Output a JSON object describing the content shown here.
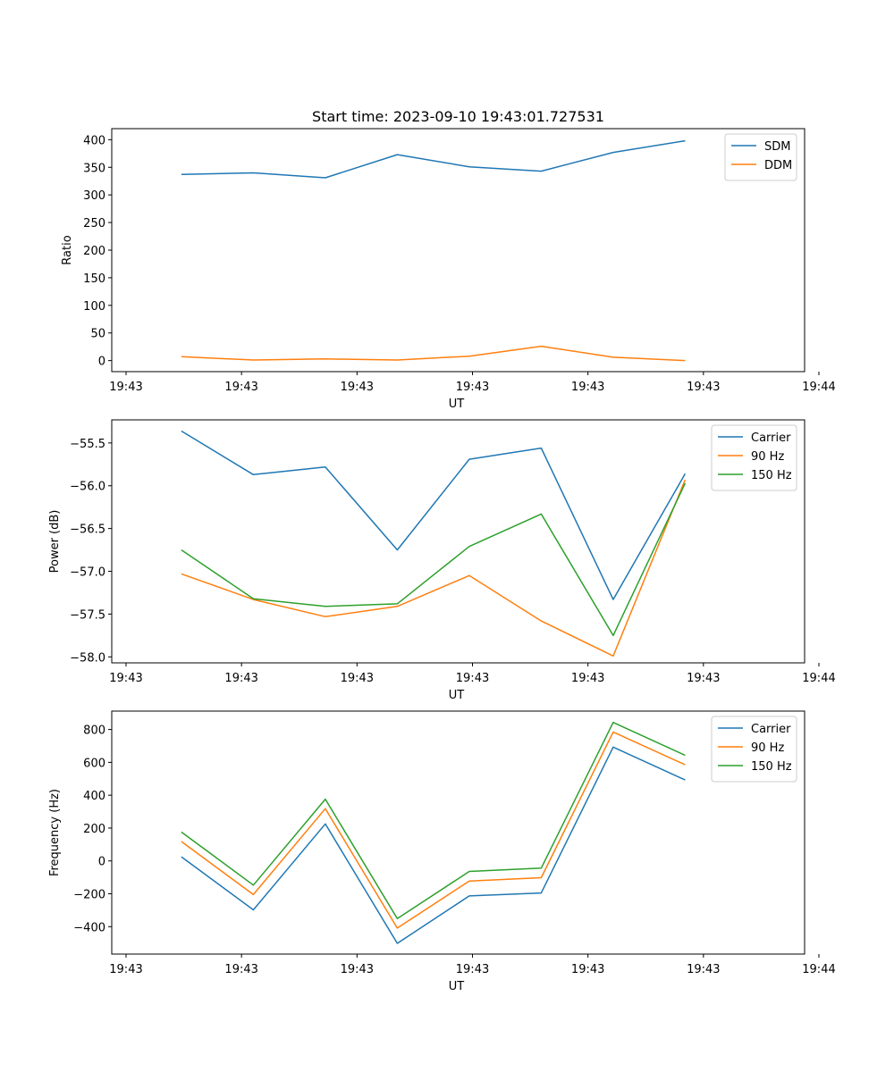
{
  "colors": {
    "blue": "#1f77b4",
    "orange": "#ff7f0e",
    "green": "#2ca02c"
  },
  "chart_data": [
    {
      "type": "line",
      "title": "Start time: 2023-09-10 19:43:01.727531",
      "xlabel": "UT",
      "ylabel": "Ratio",
      "xlim": [
        0,
        6
      ],
      "ylim": [
        -20,
        420
      ],
      "yticks": [
        0,
        50,
        100,
        150,
        200,
        250,
        300,
        350,
        400
      ],
      "xticks": [
        0,
        1,
        2,
        3,
        4,
        5,
        6
      ],
      "xtick_labels": [
        "19:43",
        "19:43",
        "19:43",
        "19:43",
        "19:43",
        "19:43",
        "19:44"
      ],
      "x": [
        0.5,
        1.15,
        1.8,
        2.45,
        3.1,
        3.75,
        4.4,
        5.05
      ],
      "legend_position": "upper right",
      "series": [
        {
          "name": "SDM",
          "color": "#1f77b4",
          "values": [
            337,
            340,
            331,
            373,
            351,
            343,
            377,
            398
          ]
        },
        {
          "name": "DDM",
          "color": "#ff7f0e",
          "values": [
            7,
            1,
            3,
            1,
            8,
            26,
            6,
            0
          ]
        }
      ]
    },
    {
      "type": "line",
      "title": "",
      "xlabel": "UT",
      "ylabel": "Power (dB)",
      "xlim": [
        0,
        6
      ],
      "ylim": [
        -58.07,
        -55.23
      ],
      "yticks": [
        -58.0,
        -57.5,
        -57.0,
        -56.5,
        -56.0,
        -55.5
      ],
      "ytick_labels": [
        "−58.0",
        "−57.5",
        "−57.0",
        "−56.5",
        "−56.0",
        "−55.5"
      ],
      "xticks": [
        0,
        1,
        2,
        3,
        4,
        5,
        6
      ],
      "xtick_labels": [
        "19:43",
        "19:43",
        "19:43",
        "19:43",
        "19:43",
        "19:43",
        "19:44"
      ],
      "x": [
        0.5,
        1.15,
        1.8,
        2.45,
        3.1,
        3.75,
        4.4,
        5.05
      ],
      "legend_position": "upper right",
      "series": [
        {
          "name": "Carrier",
          "color": "#1f77b4",
          "values": [
            -55.36,
            -55.87,
            -55.78,
            -56.75,
            -55.69,
            -55.56,
            -57.33,
            -55.86
          ]
        },
        {
          "name": "90 Hz",
          "color": "#ff7f0e",
          "values": [
            -57.03,
            -57.33,
            -57.53,
            -57.41,
            -57.05,
            -57.58,
            -57.99,
            -55.93
          ]
        },
        {
          "name": "150 Hz",
          "color": "#2ca02c",
          "values": [
            -56.75,
            -57.32,
            -57.41,
            -57.38,
            -56.71,
            -56.33,
            -57.75,
            -55.97
          ]
        }
      ]
    },
    {
      "type": "line",
      "title": "",
      "xlabel": "UT",
      "ylabel": "Frequency (Hz)",
      "xlim": [
        0,
        6
      ],
      "ylim": [
        -567,
        912
      ],
      "yticks": [
        -400,
        -200,
        0,
        200,
        400,
        600,
        800
      ],
      "ytick_labels": [
        "−400",
        "−200",
        "0",
        "200",
        "400",
        "600",
        "800"
      ],
      "xticks": [
        0,
        1,
        2,
        3,
        4,
        5,
        6
      ],
      "xtick_labels": [
        "19:43",
        "19:43",
        "19:43",
        "19:43",
        "19:43",
        "19:43",
        "19:44"
      ],
      "x": [
        0.5,
        1.15,
        1.8,
        2.45,
        3.1,
        3.75,
        4.4,
        5.05
      ],
      "legend_position": "upper right",
      "series": [
        {
          "name": "Carrier",
          "color": "#1f77b4",
          "values": [
            25,
            -298,
            225,
            -502,
            -213,
            -195,
            693,
            493
          ]
        },
        {
          "name": "90 Hz",
          "color": "#ff7f0e",
          "values": [
            118,
            -205,
            318,
            -409,
            -122,
            -102,
            785,
            585
          ]
        },
        {
          "name": "150 Hz",
          "color": "#2ca02c",
          "values": [
            176,
            -147,
            376,
            -351,
            -64,
            -44,
            843,
            643
          ]
        }
      ]
    }
  ]
}
